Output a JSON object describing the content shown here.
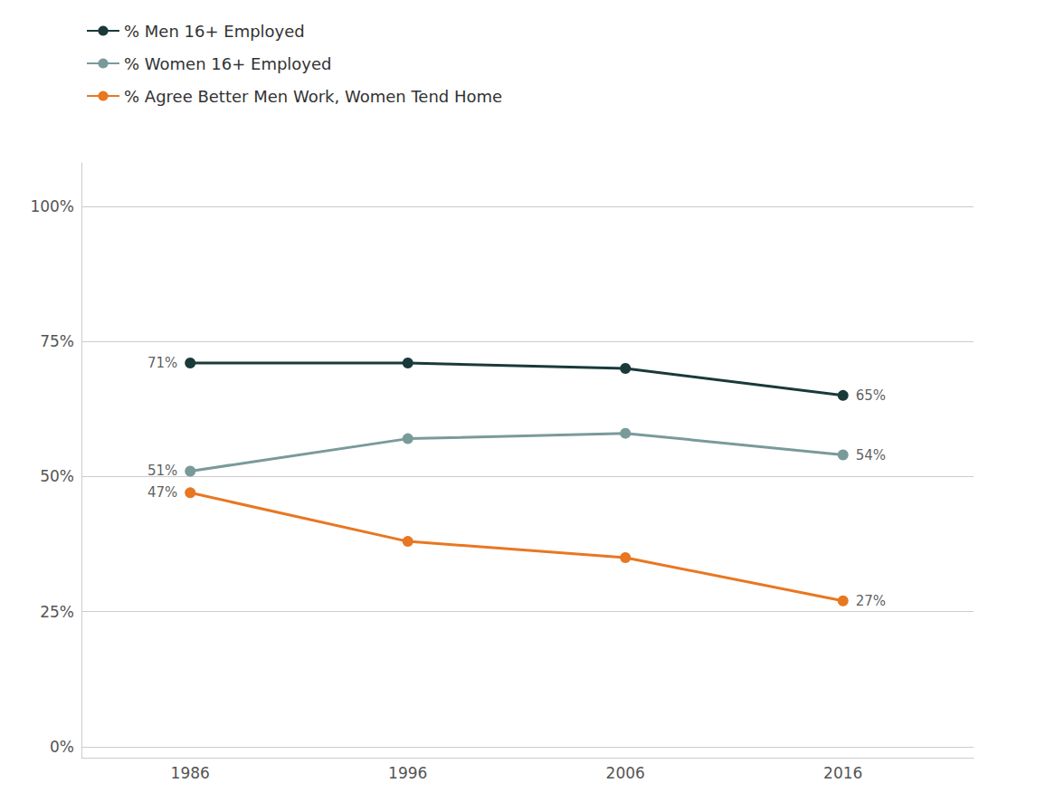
{
  "chart_data": {
    "type": "line",
    "x": [
      1986,
      1996,
      2006,
      2016
    ],
    "series": [
      {
        "name": "% Men 16+ Employed",
        "color": "#1a3a3a",
        "marker": "circle",
        "values": [
          71,
          71,
          70,
          65
        ]
      },
      {
        "name": "% Women 16+ Employed",
        "color": "#7a9a9a",
        "marker": "circle",
        "values": [
          51,
          57,
          58,
          54
        ]
      },
      {
        "name": "% Agree Better Men Work, Women Tend Home",
        "color": "#e87722",
        "marker": "circle",
        "values": [
          47,
          38,
          35,
          27
        ]
      }
    ],
    "xlim": [
      1981,
      2022
    ],
    "xticks": [
      1986,
      1996,
      2006,
      2016
    ],
    "ylim": [
      -2,
      108
    ],
    "yticks": [
      {
        "value": 0,
        "label": "0%"
      },
      {
        "value": 25,
        "label": "25%"
      },
      {
        "value": 50,
        "label": "50%"
      },
      {
        "value": 75,
        "label": "75%"
      },
      {
        "value": 100,
        "label": "100%"
      }
    ],
    "grid": true,
    "legend": "upper left",
    "annotations": [
      {
        "text": "71%",
        "x": 1986,
        "y": 71
      },
      {
        "text": "51%",
        "x": 1986,
        "y": 51
      },
      {
        "text": "47%",
        "x": 1986,
        "y": 47
      },
      {
        "text": "65%",
        "x": 2016,
        "y": 65
      },
      {
        "text": "54%",
        "x": 2016,
        "y": 54
      },
      {
        "text": "27%",
        "x": 2016,
        "y": 27
      }
    ]
  }
}
